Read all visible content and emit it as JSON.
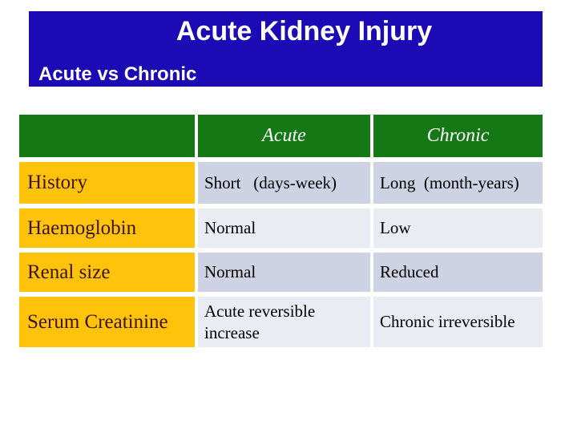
{
  "slide": {
    "title": "Acute Kidney Injury",
    "subtitle": "Acute vs Chronic"
  },
  "table": {
    "columns": [
      "",
      "Acute",
      "Chronic"
    ],
    "rows": [
      {
        "label": "History",
        "acute": "Short   (days-week)",
        "chronic": "Long  (month-years)"
      },
      {
        "label": "Haemoglobin",
        "acute": "Normal",
        "chronic": "Low"
      },
      {
        "label": "Renal size",
        "acute": "Normal",
        "chronic": "Reduced"
      },
      {
        "label": "Serum Creatinine",
        "acute": "Acute reversible increase",
        "chronic": "Chronic irreversible"
      }
    ]
  },
  "colors": {
    "banner_blue": "#1c0ab4",
    "header_green": "#147814",
    "label_orange": "#ffc30b",
    "label_text_maroon": "#3c1405",
    "band_dark": "#cdd3e2",
    "band_light": "#e9ecf3",
    "title_text": "#ffffff"
  }
}
